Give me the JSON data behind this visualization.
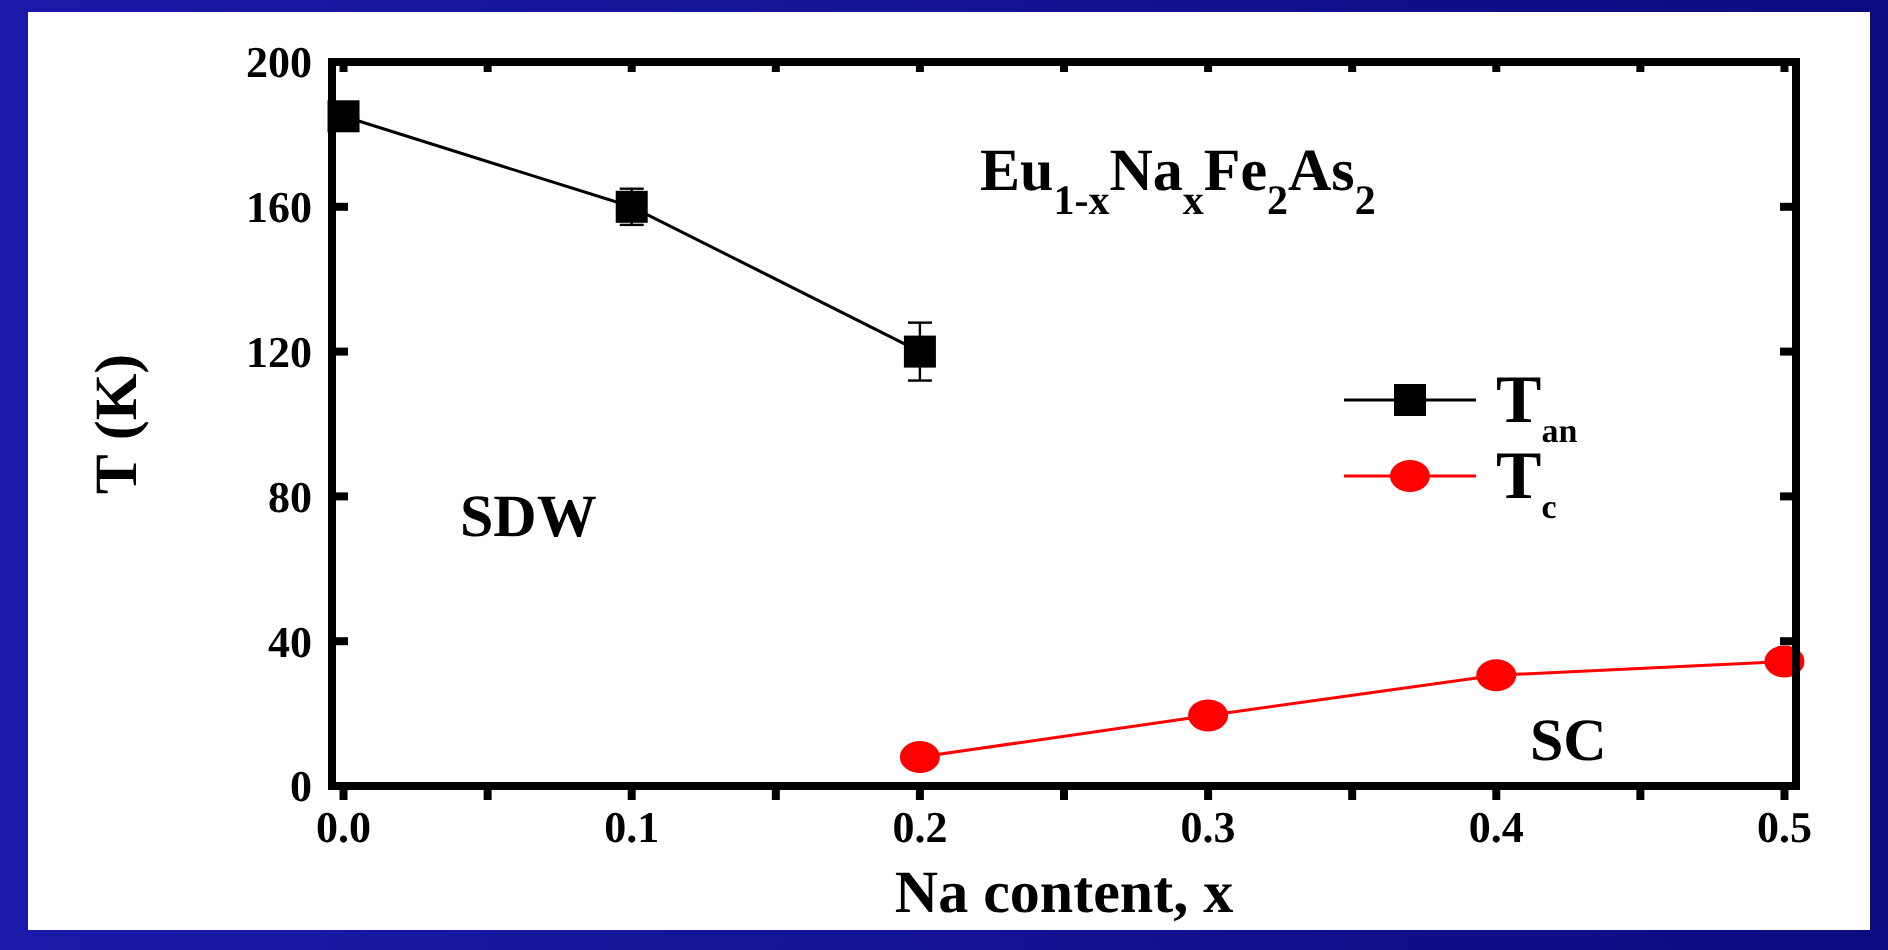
{
  "chart_data": {
    "type": "line",
    "xlabel": "Na content, x",
    "ylabel": "T (K)",
    "annotations": [
      "Eu$_{1-x}$Na$_{x}$Fe$_{2}$As$_{2}$",
      "SDW",
      "SC"
    ],
    "xlim": [
      -0.004,
      0.504
    ],
    "ylim": [
      0,
      200
    ],
    "xticks": [
      {
        "value": 0,
        "label": "0.0"
      },
      {
        "value": 0.05,
        "label": null
      },
      0.1,
      {
        "value": 0.15,
        "label": null
      },
      0.2,
      {
        "value": 0.25,
        "label": null
      },
      0.3,
      {
        "value": 0.35,
        "label": null
      },
      0.4,
      {
        "value": 0.45,
        "label": null
      },
      0.5
    ],
    "yticks": [
      0,
      40,
      80,
      120,
      160,
      200
    ],
    "legend": "right",
    "grid": false,
    "series": [
      {
        "name": "T$_{an}$",
        "color": "#000000",
        "marker": "square",
        "x": [
          0,
          0.1,
          0.2
        ],
        "values": [
          185,
          160,
          120
        ],
        "errors": [
          null,
          5,
          8
        ]
      },
      {
        "name": "T$_{c}$",
        "color": "#ff0000",
        "marker": "circle",
        "x": [
          0.2,
          0.3,
          0.4,
          0.5
        ],
        "values": [
          8,
          19.5,
          30.6,
          34.4
        ]
      }
    ]
  }
}
